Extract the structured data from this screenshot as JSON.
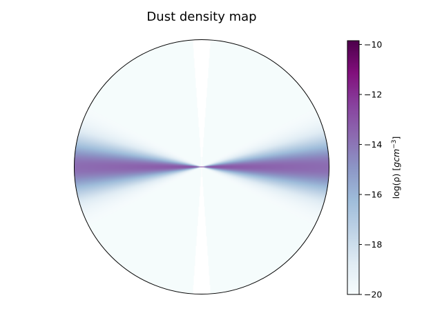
{
  "chart_data": {
    "type": "heatmap",
    "projection": "polar-meridional-section",
    "title": "Dust density map",
    "colorbar": {
      "label": "log(ρ) [gcm⁻³]",
      "label_base": "log(ρ) [",
      "label_unit": "gcm",
      "label_exp": "−3",
      "label_close": "]",
      "range": [
        -20,
        -9.85
      ],
      "ticks": [
        -10,
        -12,
        -14,
        -16,
        -18,
        -20
      ],
      "tick_labels": [
        "−10",
        "−12",
        "−14",
        "−16",
        "−18",
        "−20"
      ],
      "colormap": "BuPu",
      "colormap_stops": [
        "#f7fcfd",
        "#e0ecf4",
        "#bfd3e6",
        "#9ebcda",
        "#8c96c6",
        "#8c6bb1",
        "#88419d",
        "#810f7c",
        "#4d004b"
      ]
    },
    "density_model": {
      "background_log_rho": -20,
      "midplane_log_rho_center": -12.3,
      "midplane_log_rho_edge": -13.7,
      "disk_opening_half_angle_deg": 30,
      "polar_cone_half_angle_deg": 4
    }
  }
}
